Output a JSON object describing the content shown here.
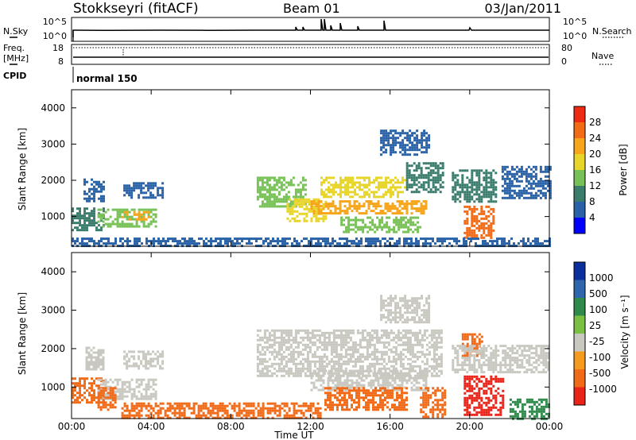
{
  "header": {
    "station": "Stokkseyri (fitACF)",
    "beam": "Beam 01",
    "date": "03/Jan/2011"
  },
  "top_panels": {
    "nsky_label": "N.Sky",
    "nsearch_label": "N.Search",
    "nsky_ticks": [
      "10^5",
      "10^0"
    ],
    "nsearch_ticks": [
      "10^5",
      "10^0"
    ],
    "freq_label_1": "Freq.",
    "freq_label_2": "[MHz]",
    "freq_ticks": [
      "18",
      "8"
    ],
    "nave_label": "Nave",
    "nave_ticks": [
      "80",
      "0"
    ],
    "cpid_label": "CPID",
    "cpid_value": "normal 150"
  },
  "time_axis": {
    "label": "Time UT",
    "ticks": [
      "00:00",
      "04:00",
      "08:00",
      "12:00",
      "16:00",
      "20:00",
      "00:00"
    ]
  },
  "colors": {
    "power_scale": [
      "#0000ff",
      "#2a62a8",
      "#3b7d6d",
      "#77c157",
      "#e8d52a",
      "#f7a51b",
      "#f26b17",
      "#ee2a15"
    ],
    "velocity_scale": [
      "#0a2f9c",
      "#2e66ad",
      "#2f8a4c",
      "#7ac143",
      "#c8c8c0",
      "#f39a1f",
      "#f06a18",
      "#ea2418"
    ]
  },
  "chart_data": [
    {
      "type": "heatmap",
      "title": "Power",
      "ylabel": "Slant Range [km]",
      "xlabel": "",
      "ylim": [
        180,
        4500
      ],
      "xlim_hours": [
        0,
        24
      ],
      "yticks": [
        1000,
        2000,
        3000,
        4000
      ],
      "colorbar": {
        "label": "Power [dB]",
        "ticks": [
          4,
          8,
          12,
          16,
          20,
          24,
          28
        ],
        "range": [
          0,
          32
        ]
      },
      "regions": [
        {
          "t": [
            0.0,
            1.6
          ],
          "r": [
            600,
            1250
          ],
          "v": 9
        },
        {
          "t": [
            0.6,
            1.6
          ],
          "r": [
            1450,
            2050
          ],
          "v": 6
        },
        {
          "t": [
            1.3,
            4.2
          ],
          "r": [
            700,
            1220
          ],
          "v": 14
        },
        {
          "t": [
            2.5,
            3.9
          ],
          "r": [
            900,
            1150
          ],
          "v": 22
        },
        {
          "t": [
            2.6,
            4.6
          ],
          "r": [
            1500,
            1950
          ],
          "v": 5
        },
        {
          "t": [
            9.3,
            11.8
          ],
          "r": [
            1300,
            2100
          ],
          "v": 13
        },
        {
          "t": [
            10.8,
            12.8
          ],
          "r": [
            900,
            1500
          ],
          "v": 18
        },
        {
          "t": [
            12.0,
            17.8
          ],
          "r": [
            1100,
            1450
          ],
          "v": 23
        },
        {
          "t": [
            12.5,
            16.8
          ],
          "r": [
            1550,
            2100
          ],
          "v": 17
        },
        {
          "t": [
            13.5,
            17.5
          ],
          "r": [
            600,
            1000
          ],
          "v": 15
        },
        {
          "t": [
            16.8,
            18.6
          ],
          "r": [
            1700,
            2500
          ],
          "v": 10
        },
        {
          "t": [
            15.5,
            18.0
          ],
          "r": [
            2700,
            3400
          ],
          "v": 5
        },
        {
          "t": [
            19.1,
            21.3
          ],
          "r": [
            1400,
            2300
          ],
          "v": 9
        },
        {
          "t": [
            19.7,
            21.2
          ],
          "r": [
            400,
            1300
          ],
          "v": 25
        },
        {
          "t": [
            21.6,
            24.0
          ],
          "r": [
            1500,
            2400
          ],
          "v": 5
        },
        {
          "t": [
            0.0,
            24.0
          ],
          "r": [
            180,
            420
          ],
          "v": 6
        }
      ]
    },
    {
      "type": "heatmap",
      "title": "Velocity",
      "ylabel": "Slant Range [km]",
      "xlabel": "Time UT",
      "ylim": [
        180,
        4500
      ],
      "xlim_hours": [
        0,
        24
      ],
      "yticks": [
        1000,
        2000,
        3000,
        4000
      ],
      "colorbar": {
        "label": "Velocity [m s⁻¹]",
        "ticks": [
          "1000",
          "500",
          "100",
          "25",
          "-25",
          "-100",
          "-500",
          "-1000"
        ]
      },
      "regions": [
        {
          "t": [
            0.0,
            1.6
          ],
          "r": [
            600,
            1250
          ],
          "v": -250
        },
        {
          "t": [
            0.7,
            1.6
          ],
          "r": [
            1450,
            2050
          ],
          "v": 0
        },
        {
          "t": [
            1.3,
            4.2
          ],
          "r": [
            700,
            1220
          ],
          "v": 0
        },
        {
          "t": [
            1.3,
            2.2
          ],
          "r": [
            400,
            1000
          ],
          "v": -300
        },
        {
          "t": [
            2.6,
            4.6
          ],
          "r": [
            1500,
            1950
          ],
          "v": 0
        },
        {
          "t": [
            9.3,
            18.6
          ],
          "r": [
            1300,
            2500
          ],
          "v": 0
        },
        {
          "t": [
            12.0,
            17.8
          ],
          "r": [
            900,
            1450
          ],
          "v": 0
        },
        {
          "t": [
            12.7,
            16.8
          ],
          "r": [
            400,
            1000
          ],
          "v": -400
        },
        {
          "t": [
            15.5,
            18.0
          ],
          "r": [
            2700,
            3400
          ],
          "v": 0
        },
        {
          "t": [
            17.5,
            18.8
          ],
          "r": [
            200,
            1000
          ],
          "v": -300
        },
        {
          "t": [
            19.6,
            20.6
          ],
          "r": [
            1800,
            2400
          ],
          "v": -400
        },
        {
          "t": [
            19.7,
            21.7
          ],
          "r": [
            300,
            1300
          ],
          "v": -500
        },
        {
          "t": [
            19.1,
            24.0
          ],
          "r": [
            1400,
            2100
          ],
          "v": 0
        },
        {
          "t": [
            2.5,
            12.5
          ],
          "r": [
            180,
            600
          ],
          "v": -150
        },
        {
          "t": [
            22.0,
            24.0
          ],
          "r": [
            180,
            700
          ],
          "v": 120
        }
      ]
    }
  ]
}
